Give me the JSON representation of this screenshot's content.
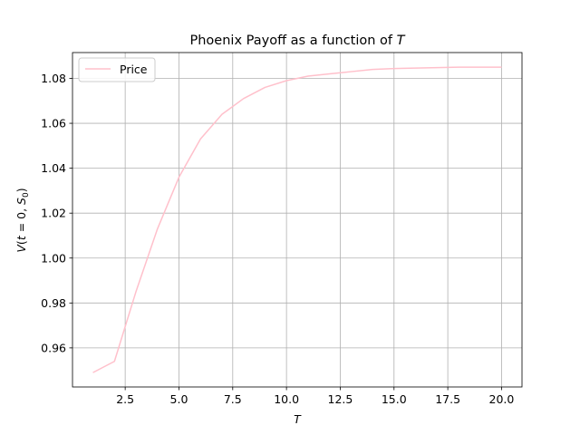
{
  "chart_data": {
    "type": "line",
    "title_prefix": "Phoenix Payoff as a function of ",
    "title_var": "T",
    "xlabel": "T",
    "ylabel_parts": {
      "V": "V",
      "open": "(",
      "t": "t",
      "eq": " = 0, ",
      "S": "S",
      "sub": "0",
      "close": ")"
    },
    "xlim": [
      0.05,
      20.95
    ],
    "ylim": [
      0.9426,
      1.0915
    ],
    "xticks": [
      2.5,
      5.0,
      7.5,
      10.0,
      12.5,
      15.0,
      17.5,
      20.0
    ],
    "xtick_labels": [
      "2.5",
      "5.0",
      "7.5",
      "10.0",
      "12.5",
      "15.0",
      "17.5",
      "20.0"
    ],
    "yticks": [
      0.96,
      0.98,
      1.0,
      1.02,
      1.04,
      1.06,
      1.08
    ],
    "ytick_labels": [
      "0.96",
      "0.98",
      "1.00",
      "1.02",
      "1.04",
      "1.06",
      "1.08"
    ],
    "grid": true,
    "legend_position": "upper-left",
    "series": [
      {
        "name": "Price",
        "color": "#ffc0cb",
        "x": [
          1,
          2,
          3,
          4,
          5,
          6,
          7,
          8,
          9,
          10,
          11,
          12,
          13,
          14,
          15,
          16,
          17,
          18,
          19,
          20
        ],
        "y": [
          0.949,
          0.954,
          0.985,
          1.013,
          1.036,
          1.053,
          1.064,
          1.071,
          1.076,
          1.079,
          1.081,
          1.082,
          1.083,
          1.084,
          1.0844,
          1.0846,
          1.0848,
          1.085,
          1.085,
          1.085
        ]
      }
    ]
  }
}
